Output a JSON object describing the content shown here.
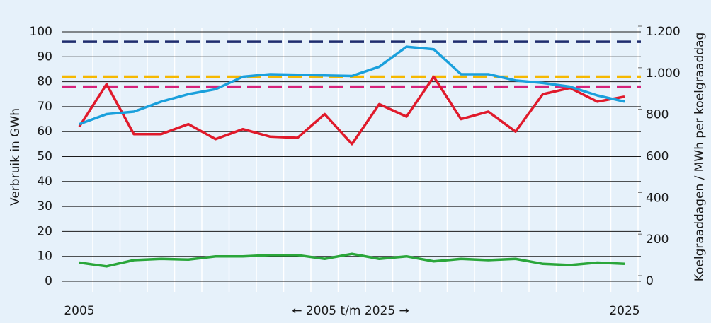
{
  "chart_data": {
    "type": "line",
    "ylabel": "Verbruik in GWh",
    "y2label": "Koelgraaddagen / MWh per koelgraaddag",
    "annotation": "← 2005 t/m 2025 →",
    "categories": [
      "2005",
      null,
      null,
      null,
      null,
      null,
      null,
      null,
      null,
      null,
      null,
      null,
      null,
      null,
      null,
      null,
      null,
      null,
      null,
      null,
      "2025"
    ],
    "ylim": [
      0,
      100
    ],
    "yticks": [
      0,
      10,
      20,
      30,
      40,
      50,
      60,
      70,
      80,
      90,
      100
    ],
    "y2lim": [
      0,
      1200
    ],
    "y2ticks": [
      0,
      200,
      400,
      600,
      800,
      {
        "value": 1000,
        "label": "1.000"
      },
      {
        "value": 1200,
        "label": "1.200"
      }
    ],
    "grid": true,
    "reference_lines": [
      {
        "value": 96,
        "color": "#1f2d6e"
      },
      {
        "value": 82,
        "color": "#f5b800"
      },
      {
        "value": 78,
        "color": "#d6237a"
      }
    ],
    "series": [
      {
        "color": "#e01a2b",
        "values": [
          62,
          79,
          59,
          59,
          63,
          57,
          61,
          58,
          57.5,
          67,
          55,
          71,
          66,
          82,
          65,
          68,
          60,
          75,
          77.5,
          72,
          74
        ]
      },
      {
        "color": "#1aa0dc",
        "values": [
          63,
          67,
          68,
          72,
          75,
          77,
          82,
          83,
          82.8,
          82.5,
          82.3,
          86,
          94,
          93,
          83,
          83,
          80.5,
          79.5,
          78,
          74.5,
          72
        ]
      },
      {
        "color": "#2aa63a",
        "values": [
          7.5,
          6,
          8.5,
          9,
          8.7,
          10,
          10,
          10.5,
          10.5,
          9,
          11,
          9,
          10,
          8,
          9,
          8.5,
          9,
          7,
          6.5,
          7.5,
          7
        ]
      }
    ]
  }
}
